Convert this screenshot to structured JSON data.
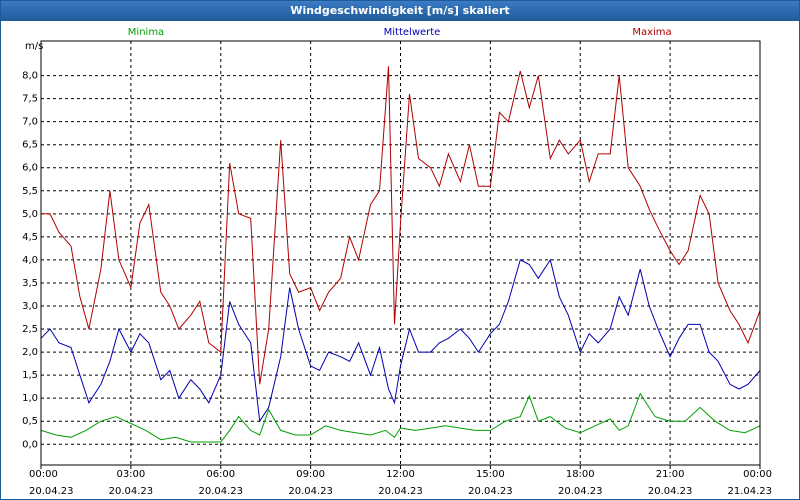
{
  "title": "Windgeschwindigkeit [m/s] skaliert",
  "chart_data": {
    "type": "line",
    "ylabel": "m/s",
    "ylim": [
      -0.45,
      8.75
    ],
    "y_ticks": [
      "0,0",
      "0,5",
      "1,0",
      "1,5",
      "2,0",
      "2,5",
      "3,0",
      "3,5",
      "4,0",
      "4,5",
      "5,0",
      "5,5",
      "6,0",
      "6,5",
      "7,0",
      "7,5",
      "8,0"
    ],
    "x_range_hours": [
      0,
      24
    ],
    "x_ticks": [
      {
        "time": "00:00",
        "date": "20.04.23"
      },
      {
        "time": "03:00",
        "date": "20.04.23"
      },
      {
        "time": "06:00",
        "date": "20.04.23"
      },
      {
        "time": "09:00",
        "date": "20.04.23"
      },
      {
        "time": "12:00",
        "date": "20.04.23"
      },
      {
        "time": "15:00",
        "date": "20.04.23"
      },
      {
        "time": "18:00",
        "date": "20.04.23"
      },
      {
        "time": "21:00",
        "date": "20.04.23"
      },
      {
        "time": "00:00",
        "date": "21.04.23"
      }
    ],
    "series": [
      {
        "name": "Minima",
        "color": "#00a000",
        "x": [
          0,
          0.5,
          1,
          1.5,
          2,
          2.5,
          3,
          3.5,
          4,
          4.5,
          5,
          5.5,
          6,
          6.3,
          6.6,
          7,
          7.3,
          7.6,
          8,
          8.5,
          9,
          9.5,
          10,
          10.5,
          11,
          11.5,
          11.8,
          12,
          12.5,
          13,
          13.5,
          14,
          14.5,
          15,
          15.5,
          16,
          16.3,
          16.6,
          17,
          17.5,
          18,
          18.5,
          19,
          19.3,
          19.6,
          20,
          20.5,
          21,
          21.5,
          22,
          22.5,
          23,
          23.5,
          24
        ],
        "values": [
          0.3,
          0.2,
          0.15,
          0.3,
          0.5,
          0.6,
          0.45,
          0.3,
          0.1,
          0.15,
          0.05,
          0.05,
          0.05,
          0.3,
          0.6,
          0.3,
          0.2,
          0.75,
          0.3,
          0.2,
          0.2,
          0.4,
          0.3,
          0.25,
          0.2,
          0.3,
          0.15,
          0.35,
          0.3,
          0.35,
          0.4,
          0.35,
          0.3,
          0.3,
          0.5,
          0.6,
          1.05,
          0.5,
          0.6,
          0.35,
          0.25,
          0.4,
          0.55,
          0.3,
          0.4,
          1.1,
          0.6,
          0.5,
          0.5,
          0.8,
          0.5,
          0.3,
          0.25,
          0.4
        ]
      },
      {
        "name": "Mittelwerte",
        "color": "#0000b0",
        "x": [
          0,
          0.3,
          0.6,
          1,
          1.3,
          1.6,
          2,
          2.3,
          2.6,
          3,
          3.3,
          3.6,
          4,
          4.3,
          4.6,
          5,
          5.3,
          5.6,
          6,
          6.3,
          6.6,
          7,
          7.3,
          7.6,
          8,
          8.3,
          8.6,
          9,
          9.3,
          9.6,
          10,
          10.3,
          10.6,
          11,
          11.3,
          11.6,
          11.8,
          12,
          12.3,
          12.6,
          13,
          13.3,
          13.6,
          14,
          14.3,
          14.6,
          15,
          15.3,
          15.6,
          16,
          16.3,
          16.6,
          17,
          17.3,
          17.6,
          18,
          18.3,
          18.6,
          19,
          19.3,
          19.6,
          20,
          20.3,
          20.6,
          21,
          21.3,
          21.6,
          22,
          22.3,
          22.6,
          23,
          23.3,
          23.6,
          24
        ],
        "values": [
          2.3,
          2.5,
          2.2,
          2.1,
          1.5,
          0.9,
          1.3,
          1.8,
          2.5,
          2.0,
          2.4,
          2.2,
          1.4,
          1.6,
          1.0,
          1.4,
          1.2,
          0.9,
          1.5,
          3.1,
          2.6,
          2.2,
          0.5,
          0.8,
          1.9,
          3.4,
          2.5,
          1.7,
          1.6,
          2.0,
          1.9,
          1.8,
          2.2,
          1.5,
          2.1,
          1.2,
          0.9,
          1.7,
          2.5,
          2.0,
          2.0,
          2.2,
          2.3,
          2.5,
          2.3,
          2.0,
          2.4,
          2.6,
          3.1,
          4.0,
          3.9,
          3.6,
          4.0,
          3.2,
          2.8,
          2.0,
          2.4,
          2.2,
          2.5,
          3.2,
          2.8,
          3.8,
          3.0,
          2.5,
          1.9,
          2.3,
          2.6,
          2.6,
          2.0,
          1.8,
          1.3,
          1.2,
          1.3,
          1.6
        ]
      },
      {
        "name": "Maxima",
        "color": "#b00000",
        "x": [
          0,
          0.3,
          0.6,
          1,
          1.3,
          1.6,
          2,
          2.3,
          2.6,
          3,
          3.3,
          3.6,
          4,
          4.3,
          4.6,
          5,
          5.3,
          5.6,
          6,
          6.3,
          6.6,
          7,
          7.3,
          7.6,
          8,
          8.3,
          8.6,
          9,
          9.3,
          9.6,
          10,
          10.3,
          10.6,
          11,
          11.3,
          11.6,
          11.8,
          12,
          12.3,
          12.6,
          13,
          13.3,
          13.6,
          14,
          14.3,
          14.6,
          15,
          15.3,
          15.6,
          16,
          16.3,
          16.6,
          17,
          17.3,
          17.6,
          18,
          18.3,
          18.6,
          19,
          19.3,
          19.6,
          20,
          20.3,
          20.6,
          21,
          21.3,
          21.6,
          22,
          22.3,
          22.6,
          23,
          23.3,
          23.6,
          24
        ],
        "values": [
          5.0,
          5.0,
          4.6,
          4.3,
          3.2,
          2.5,
          3.8,
          5.5,
          4.0,
          3.4,
          4.8,
          5.2,
          3.3,
          3.0,
          2.5,
          2.8,
          3.1,
          2.2,
          2.0,
          6.1,
          5.0,
          4.9,
          1.3,
          2.5,
          6.6,
          3.7,
          3.3,
          3.4,
          2.9,
          3.3,
          3.6,
          4.5,
          4.0,
          5.2,
          5.5,
          8.2,
          2.6,
          4.8,
          7.6,
          6.2,
          6.0,
          5.6,
          6.3,
          5.7,
          6.5,
          5.6,
          5.6,
          7.2,
          7.0,
          8.1,
          7.3,
          8.0,
          6.2,
          6.6,
          6.3,
          6.6,
          5.7,
          6.3,
          6.3,
          8.0,
          6.0,
          5.6,
          5.1,
          4.7,
          4.2,
          3.9,
          4.2,
          5.4,
          5.0,
          3.5,
          2.9,
          2.6,
          2.2,
          2.9
        ]
      }
    ]
  }
}
